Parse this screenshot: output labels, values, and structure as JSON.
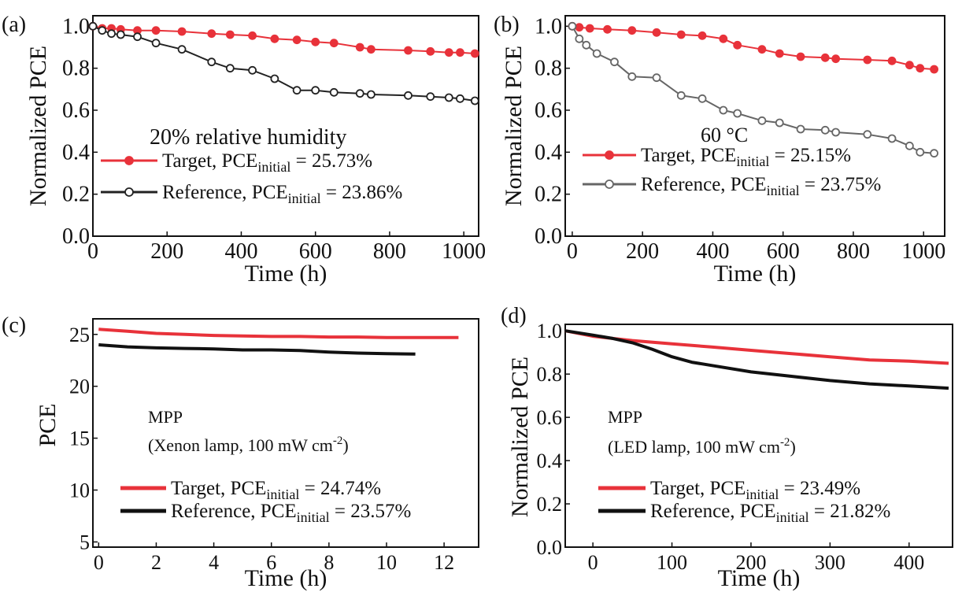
{
  "chart_data": [
    {
      "panel_label": "(a)",
      "type": "line",
      "xlabel": "Time (h)",
      "ylabel": "Normalized PCE",
      "xlim": [
        0,
        1040
      ],
      "ylim": [
        0,
        1.05
      ],
      "xticks": [
        0,
        200,
        400,
        600,
        800,
        1000
      ],
      "yticks": [
        0.0,
        0.2,
        0.4,
        0.6,
        0.8,
        1.0
      ],
      "ytick_labels": [
        "0.0",
        "0.2",
        "0.4",
        "0.6",
        "0.8",
        "1.0"
      ],
      "annotation": "20% relative humidity",
      "grid": false,
      "legend_position": "lower-left",
      "series": [
        {
          "name": "Target",
          "label_prefix": "Target, PCE",
          "label_sub": "initial",
          "label_suffix": " = 25.73%",
          "color": "#e8323a",
          "marker": "filled-circle",
          "x": [
            0,
            25,
            50,
            75,
            120,
            170,
            240,
            320,
            370,
            430,
            490,
            550,
            600,
            650,
            720,
            750,
            850,
            910,
            960,
            990,
            1030
          ],
          "y": [
            1.0,
            0.99,
            0.99,
            0.985,
            0.98,
            0.98,
            0.975,
            0.965,
            0.96,
            0.955,
            0.94,
            0.935,
            0.925,
            0.92,
            0.9,
            0.89,
            0.885,
            0.88,
            0.875,
            0.875,
            0.87
          ]
        },
        {
          "name": "Reference",
          "label_prefix": "Reference, PCE",
          "label_sub": "initial",
          "label_suffix": " = 23.86%",
          "color": "#222222",
          "marker": "open-circle",
          "x": [
            0,
            25,
            50,
            75,
            120,
            170,
            240,
            320,
            370,
            430,
            490,
            550,
            600,
            650,
            720,
            750,
            850,
            910,
            960,
            990,
            1030
          ],
          "y": [
            1.0,
            0.98,
            0.965,
            0.96,
            0.95,
            0.92,
            0.89,
            0.83,
            0.8,
            0.79,
            0.75,
            0.695,
            0.695,
            0.685,
            0.68,
            0.675,
            0.67,
            0.665,
            0.66,
            0.655,
            0.645
          ]
        }
      ]
    },
    {
      "panel_label": "(b)",
      "type": "line",
      "xlabel": "Time (h)",
      "ylabel": "Normalized PCE",
      "xlim": [
        -20,
        1060
      ],
      "ylim": [
        0,
        1.05
      ],
      "xticks": [
        0,
        200,
        400,
        600,
        800,
        1000
      ],
      "yticks": [
        0.0,
        0.2,
        0.4,
        0.6,
        0.8,
        1.0
      ],
      "ytick_labels": [
        "0.0",
        "0.2",
        "0.4",
        "0.6",
        "0.8",
        "1.0"
      ],
      "annotation": "60 °C",
      "grid": false,
      "legend_position": "lower-left",
      "series": [
        {
          "name": "Target",
          "label_prefix": "Target, PCE",
          "label_sub": "initial",
          "label_suffix": " = 25.15%",
          "color": "#e8323a",
          "marker": "filled-circle",
          "x": [
            0,
            20,
            50,
            100,
            170,
            240,
            310,
            370,
            430,
            470,
            540,
            590,
            650,
            720,
            750,
            840,
            910,
            960,
            990,
            1030
          ],
          "y": [
            1.0,
            0.995,
            0.99,
            0.985,
            0.98,
            0.97,
            0.96,
            0.955,
            0.94,
            0.91,
            0.89,
            0.87,
            0.855,
            0.85,
            0.845,
            0.84,
            0.835,
            0.815,
            0.8,
            0.795
          ]
        },
        {
          "name": "Reference",
          "label_prefix": "Reference, PCE",
          "label_sub": "initial",
          "label_suffix": " = 23.75%",
          "color": "#666666",
          "marker": "open-circle",
          "x": [
            0,
            20,
            40,
            70,
            120,
            170,
            240,
            310,
            370,
            430,
            470,
            540,
            590,
            650,
            720,
            750,
            840,
            910,
            960,
            990,
            1030
          ],
          "y": [
            1.0,
            0.94,
            0.91,
            0.87,
            0.83,
            0.76,
            0.755,
            0.67,
            0.655,
            0.6,
            0.585,
            0.55,
            0.54,
            0.51,
            0.505,
            0.495,
            0.485,
            0.465,
            0.43,
            0.4,
            0.395
          ]
        }
      ]
    },
    {
      "panel_label": "(c)",
      "type": "line",
      "xlabel": "Time (h)",
      "ylabel": "PCE",
      "xlim": [
        -0.2,
        13.2
      ],
      "ylim": [
        4.5,
        26.5
      ],
      "xticks": [
        0,
        2,
        4,
        6,
        8,
        10,
        12
      ],
      "yticks": [
        5,
        10,
        15,
        20,
        25
      ],
      "ytick_labels": [
        "5",
        "10",
        "15",
        "20",
        "25"
      ],
      "annotation": "MPP",
      "annotation2_prefix": "(Xenon lamp, 100 mW cm",
      "annotation2_sup": "-2",
      "annotation2_suffix": ")",
      "grid": false,
      "legend_position": "lower-left",
      "series": [
        {
          "name": "Target",
          "label_prefix": "Target, PCE",
          "label_sub": "initial",
          "label_suffix": " = 24.74%",
          "color": "#e8323a",
          "marker": "none",
          "x": [
            0,
            1,
            2,
            3,
            4,
            5,
            6,
            7,
            8,
            9,
            10,
            11,
            12,
            12.5
          ],
          "y": [
            25.5,
            25.3,
            25.1,
            25.0,
            24.9,
            24.85,
            24.8,
            24.8,
            24.75,
            24.75,
            24.7,
            24.7,
            24.7,
            24.7
          ]
        },
        {
          "name": "Reference",
          "label_prefix": "Reference, PCE",
          "label_sub": "initial",
          "label_suffix": " = 23.57%",
          "color": "#111111",
          "marker": "none",
          "x": [
            0,
            1,
            2,
            3,
            4,
            5,
            6,
            7,
            8,
            9,
            10,
            11
          ],
          "y": [
            24.0,
            23.8,
            23.7,
            23.65,
            23.6,
            23.5,
            23.5,
            23.45,
            23.3,
            23.2,
            23.15,
            23.1
          ]
        }
      ]
    },
    {
      "panel_label": "(d)",
      "type": "line",
      "xlabel": "Time (h)",
      "ylabel": "Normalized PCE",
      "xlim": [
        -35,
        455
      ],
      "ylim": [
        0,
        1.03
      ],
      "xticks": [
        0,
        100,
        200,
        300,
        400
      ],
      "yticks": [
        0.0,
        0.2,
        0.4,
        0.6,
        0.8,
        1.0
      ],
      "ytick_labels": [
        "0.0",
        "0.2",
        "0.4",
        "0.6",
        "0.8",
        "1.0"
      ],
      "annotation": "MPP",
      "annotation2_prefix": "(LED lamp, 100 mW cm",
      "annotation2_sup": "-2",
      "annotation2_suffix": ")",
      "grid": false,
      "legend_position": "lower-left",
      "series": [
        {
          "name": "Target",
          "label_prefix": "Target, PCE",
          "label_sub": "initial",
          "label_suffix": " = 23.49%",
          "color": "#e8323a",
          "marker": "none",
          "x": [
            -35,
            0,
            50,
            100,
            150,
            200,
            250,
            300,
            350,
            400,
            450
          ],
          "y": [
            1.0,
            0.975,
            0.955,
            0.94,
            0.925,
            0.91,
            0.895,
            0.88,
            0.865,
            0.86,
            0.85
          ]
        },
        {
          "name": "Reference",
          "label_prefix": "Reference, PCE",
          "label_sub": "initial",
          "label_suffix": " = 21.82%",
          "color": "#111111",
          "marker": "none",
          "x": [
            -35,
            0,
            25,
            50,
            75,
            100,
            125,
            150,
            200,
            250,
            300,
            350,
            400,
            450
          ],
          "y": [
            1.0,
            0.98,
            0.965,
            0.945,
            0.915,
            0.88,
            0.855,
            0.84,
            0.81,
            0.79,
            0.77,
            0.755,
            0.745,
            0.735
          ]
        }
      ]
    }
  ]
}
